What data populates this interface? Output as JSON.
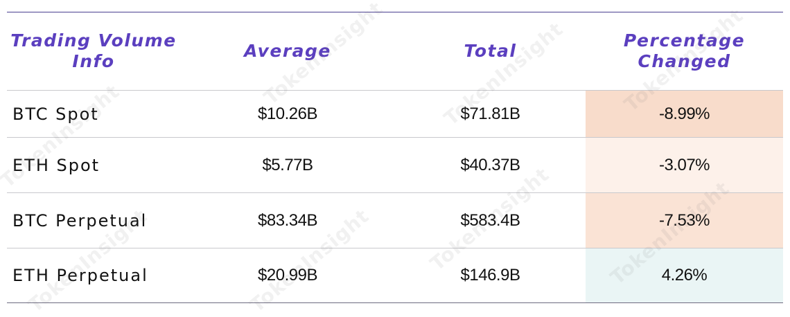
{
  "table": {
    "headers": [
      "Trading Volume Info",
      "Average",
      "Total",
      "Percentage Changed"
    ],
    "rows": [
      {
        "label": "BTC Spot",
        "average": "$10.26B",
        "total": "$71.81B",
        "change": "-8.99%",
        "change_bg": "#f8dccb"
      },
      {
        "label": "ETH Spot",
        "average": "$5.77B",
        "total": "$40.37B",
        "change": "-3.07%",
        "change_bg": "#fdf1ea"
      },
      {
        "label": "BTC Perpetual",
        "average": "$83.34B",
        "total": "$583.4B",
        "change": "-7.53%",
        "change_bg": "#fae3d5"
      },
      {
        "label": "ETH Perpetual",
        "average": "$20.99B",
        "total": "$146.9B",
        "change": "4.26%",
        "change_bg": "#eaf5f5"
      }
    ]
  },
  "watermark": "TokenInsight",
  "colors": {
    "header_text": "#5b3fbf",
    "body_text": "#111111"
  }
}
